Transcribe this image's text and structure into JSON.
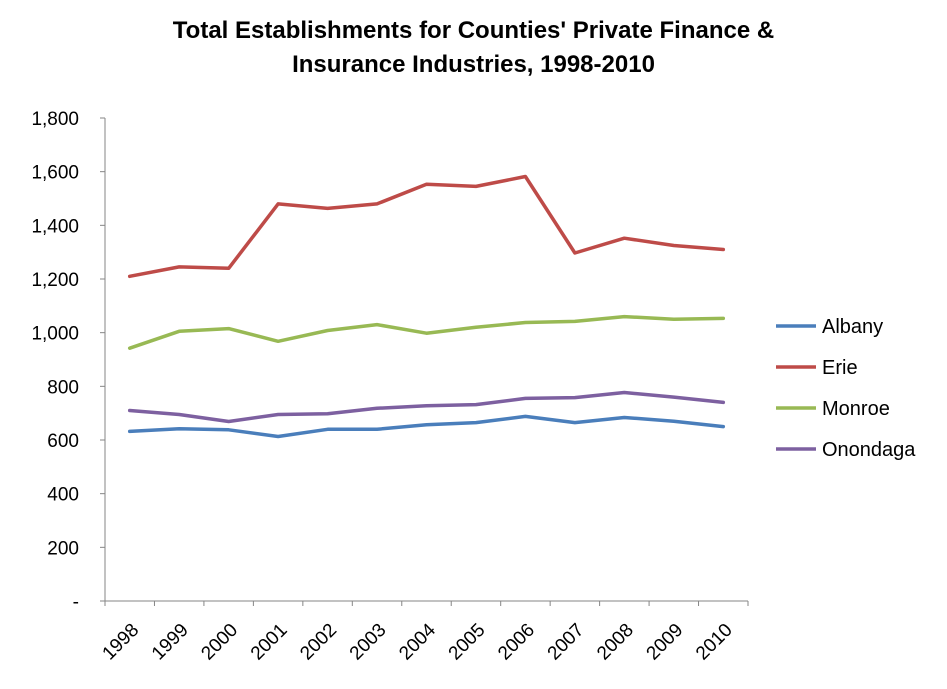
{
  "chart_data": {
    "type": "line",
    "title_lines": [
      "Total Establishments for Counties' Private Finance &",
      "Insurance Industries, 1998-2010"
    ],
    "x": [
      "1998",
      "1999",
      "2000",
      "2001",
      "2002",
      "2003",
      "2004",
      "2005",
      "2006",
      "2007",
      "2008",
      "2009",
      "2010"
    ],
    "ylim": [
      0,
      1800
    ],
    "yticks": [
      {
        "value": 0,
        "label": "-"
      },
      {
        "value": 200,
        "label": "200"
      },
      {
        "value": 400,
        "label": "400"
      },
      {
        "value": 600,
        "label": "600"
      },
      {
        "value": 800,
        "label": "800"
      },
      {
        "value": 1000,
        "label": "1,000"
      },
      {
        "value": 1200,
        "label": "1,200"
      },
      {
        "value": 1400,
        "label": "1,400"
      },
      {
        "value": 1600,
        "label": "1,600"
      },
      {
        "value": 1800,
        "label": "1,800"
      }
    ],
    "grid": false,
    "legend": "right",
    "series": [
      {
        "name": "Albany",
        "color": "#4a7ebb",
        "values": [
          632,
          642,
          638,
          613,
          640,
          640,
          657,
          665,
          688,
          665,
          684,
          670,
          650
        ]
      },
      {
        "name": "Erie",
        "color": "#be4b48",
        "values": [
          1210,
          1245,
          1240,
          1480,
          1463,
          1480,
          1553,
          1545,
          1582,
          1297,
          1352,
          1325,
          1310
        ]
      },
      {
        "name": "Monroe",
        "color": "#98b954",
        "values": [
          942,
          1005,
          1015,
          968,
          1008,
          1030,
          998,
          1020,
          1038,
          1042,
          1060,
          1050,
          1053
        ]
      },
      {
        "name": "Onondaga",
        "color": "#7d60a0",
        "values": [
          710,
          695,
          669,
          695,
          698,
          718,
          728,
          732,
          755,
          758,
          777,
          760,
          740
        ]
      }
    ]
  }
}
